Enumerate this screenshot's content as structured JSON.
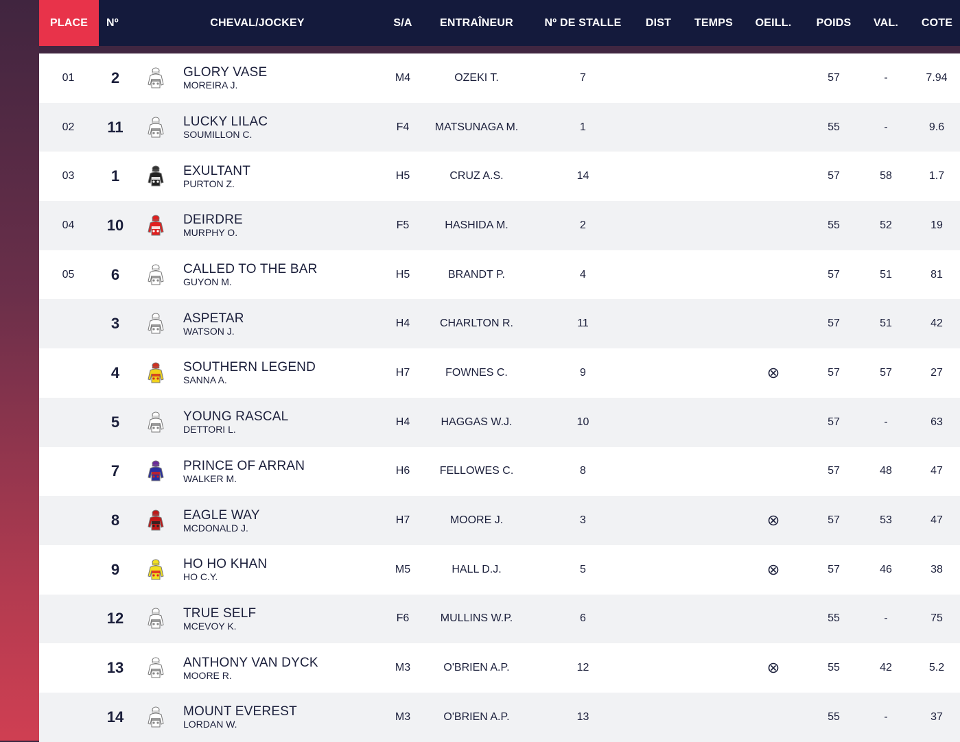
{
  "columns": {
    "place": "PLACE",
    "num": "Nº",
    "horse_jockey": "CHEVAL/JOCKEY",
    "sa": "S/A",
    "trainer": "ENTRAÎNEUR",
    "stall": "Nº DE STALLE",
    "dist": "DIST",
    "temps": "TEMPS",
    "oeill": "OEILL.",
    "poids": "POIDS",
    "val": "VAL.",
    "cote": "COTE"
  },
  "colors": {
    "header_bg": "#141a3c",
    "place_accent": "#e8334a"
  },
  "runners": [
    {
      "place": "01",
      "num": "2",
      "horse": "GLORY VASE",
      "jockey": "MOREIRA J.",
      "sa": "M4",
      "trainer": "OZEKI T.",
      "stall": "7",
      "oeill": false,
      "poids": "57",
      "val": "-",
      "cote": "7.94",
      "silk": {
        "body": "#ffffff",
        "detail": "#888888",
        "cap": "#ffffff"
      }
    },
    {
      "place": "02",
      "num": "11",
      "horse": "LUCKY LILAC",
      "jockey": "SOUMILLON C.",
      "sa": "F4",
      "trainer": "MATSUNAGA M.",
      "stall": "1",
      "oeill": false,
      "poids": "55",
      "val": "-",
      "cote": "9.6",
      "silk": {
        "body": "#ffffff",
        "detail": "#888888",
        "cap": "#ffffff"
      }
    },
    {
      "place": "03",
      "num": "1",
      "horse": "EXULTANT",
      "jockey": "PURTON Z.",
      "sa": "H5",
      "trainer": "CRUZ A.S.",
      "stall": "14",
      "oeill": false,
      "poids": "57",
      "val": "58",
      "cote": "1.7",
      "silk": {
        "body": "#222222",
        "detail": "#ffffff",
        "cap": "#333333"
      }
    },
    {
      "place": "04",
      "num": "10",
      "horse": "DEIRDRE",
      "jockey": "MURPHY O.",
      "sa": "F5",
      "trainer": "HASHIDA M.",
      "stall": "2",
      "oeill": false,
      "poids": "55",
      "val": "52",
      "cote": "19",
      "silk": {
        "body": "#e02020",
        "detail": "#ffffff",
        "cap": "#e02020"
      }
    },
    {
      "place": "05",
      "num": "6",
      "horse": "CALLED TO THE BAR",
      "jockey": "GUYON M.",
      "sa": "H5",
      "trainer": "BRANDT P.",
      "stall": "4",
      "oeill": false,
      "poids": "57",
      "val": "51",
      "cote": "81",
      "silk": {
        "body": "#ffffff",
        "detail": "#888888",
        "cap": "#ffffff"
      }
    },
    {
      "place": "",
      "num": "3",
      "horse": "ASPETAR",
      "jockey": "WATSON J.",
      "sa": "H4",
      "trainer": "CHARLTON R.",
      "stall": "11",
      "oeill": false,
      "poids": "57",
      "val": "51",
      "cote": "42",
      "silk": {
        "body": "#ffffff",
        "detail": "#888888",
        "cap": "#ffffff"
      }
    },
    {
      "place": "",
      "num": "4",
      "horse": "SOUTHERN LEGEND",
      "jockey": "SANNA A.",
      "sa": "H7",
      "trainer": "FOWNES C.",
      "stall": "9",
      "oeill": true,
      "poids": "57",
      "val": "57",
      "cote": "27",
      "silk": {
        "body": "#f2d21a",
        "detail": "#d03020",
        "cap": "#d03020"
      }
    },
    {
      "place": "",
      "num": "5",
      "horse": "YOUNG RASCAL",
      "jockey": "DETTORI L.",
      "sa": "H4",
      "trainer": "HAGGAS W.J.",
      "stall": "10",
      "oeill": false,
      "poids": "57",
      "val": "-",
      "cote": "63",
      "silk": {
        "body": "#ffffff",
        "detail": "#888888",
        "cap": "#ffffff"
      }
    },
    {
      "place": "",
      "num": "7",
      "horse": "PRINCE OF ARRAN",
      "jockey": "WALKER M.",
      "sa": "H6",
      "trainer": "FELLOWES C.",
      "stall": "8",
      "oeill": false,
      "poids": "57",
      "val": "48",
      "cote": "47",
      "silk": {
        "body": "#2a2fa0",
        "detail": "#d02020",
        "cap": "#6a2a9a"
      }
    },
    {
      "place": "",
      "num": "8",
      "horse": "EAGLE WAY",
      "jockey": "MCDONALD J.",
      "sa": "H7",
      "trainer": "MOORE J.",
      "stall": "3",
      "oeill": true,
      "poids": "57",
      "val": "53",
      "cote": "47",
      "silk": {
        "body": "#c01818",
        "detail": "#222222",
        "cap": "#c01818"
      }
    },
    {
      "place": "",
      "num": "9",
      "horse": "HO HO KHAN",
      "jockey": "HO C.Y.",
      "sa": "M5",
      "trainer": "HALL D.J.",
      "stall": "5",
      "oeill": true,
      "poids": "57",
      "val": "46",
      "cote": "38",
      "silk": {
        "body": "#f2e020",
        "detail": "#e02020",
        "cap": "#f2e020"
      }
    },
    {
      "place": "",
      "num": "12",
      "horse": "TRUE SELF",
      "jockey": "MCEVOY K.",
      "sa": "F6",
      "trainer": "MULLINS W.P.",
      "stall": "6",
      "oeill": false,
      "poids": "55",
      "val": "-",
      "cote": "75",
      "silk": {
        "body": "#ffffff",
        "detail": "#888888",
        "cap": "#ffffff"
      }
    },
    {
      "place": "",
      "num": "13",
      "horse": "ANTHONY VAN DYCK",
      "jockey": "MOORE R.",
      "sa": "M3",
      "trainer": "O'BRIEN A.P.",
      "stall": "12",
      "oeill": true,
      "poids": "55",
      "val": "42",
      "cote": "5.2",
      "silk": {
        "body": "#ffffff",
        "detail": "#888888",
        "cap": "#ffffff"
      }
    },
    {
      "place": "",
      "num": "14",
      "horse": "MOUNT EVEREST",
      "jockey": "LORDAN W.",
      "sa": "M3",
      "trainer": "O'BRIEN A.P.",
      "stall": "13",
      "oeill": false,
      "poids": "55",
      "val": "-",
      "cote": "37",
      "silk": {
        "body": "#ffffff",
        "detail": "#888888",
        "cap": "#ffffff"
      }
    }
  ]
}
